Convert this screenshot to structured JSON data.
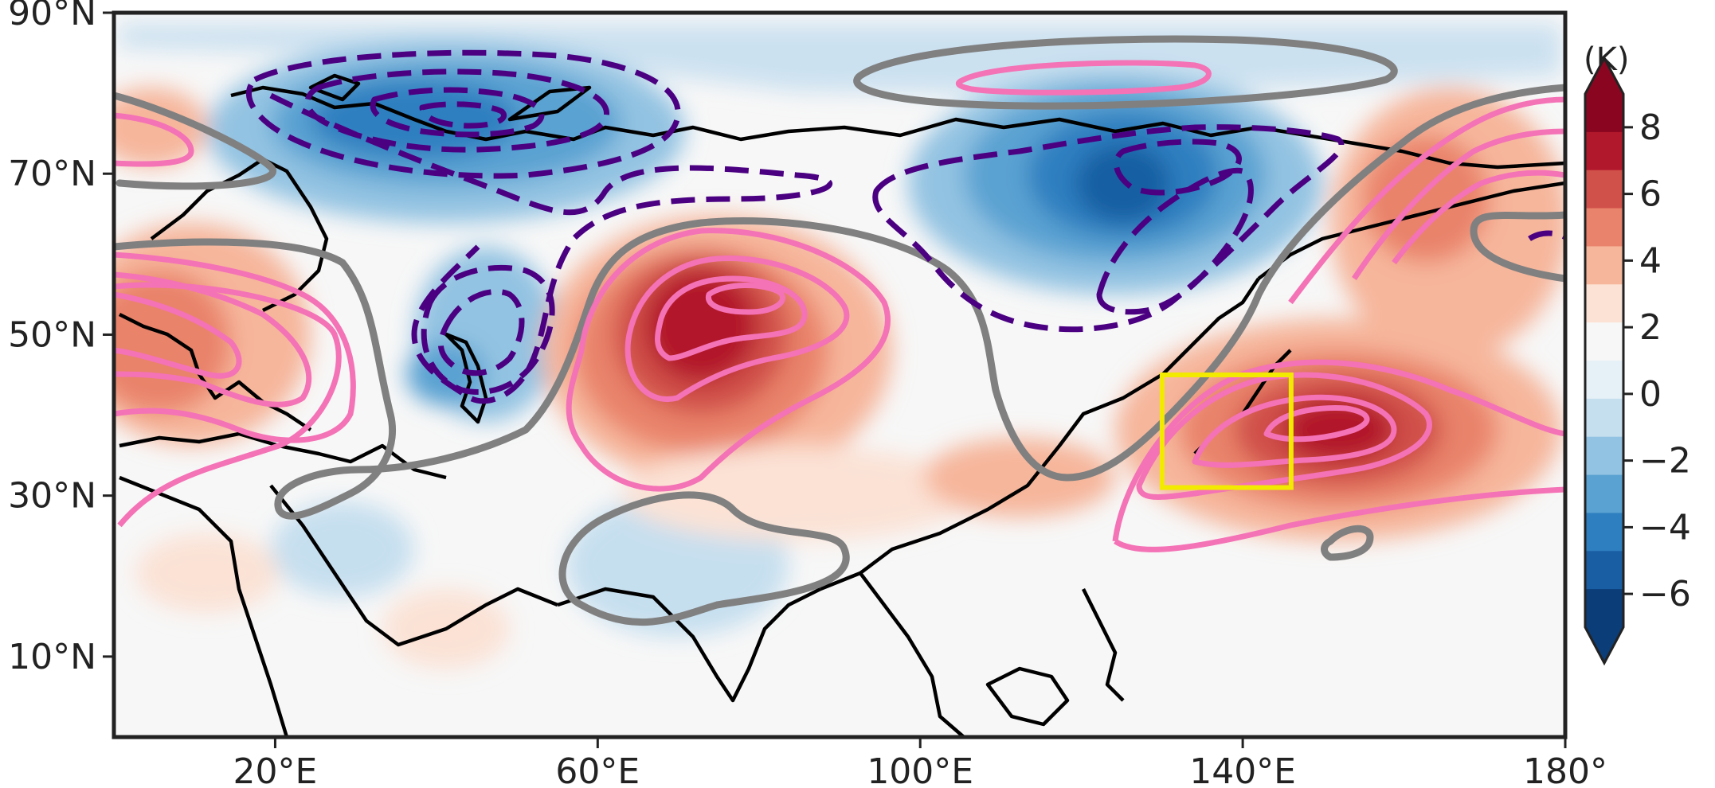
{
  "map": {
    "lon_range": [
      0,
      180
    ],
    "lat_range": [
      0,
      90
    ],
    "x_ticks": [
      {
        "lon": 20,
        "label": "20°E"
      },
      {
        "lon": 60,
        "label": "60°E"
      },
      {
        "lon": 100,
        "label": "100°E"
      },
      {
        "lon": 140,
        "label": "140°E"
      },
      {
        "lon": 180,
        "label": "180°"
      }
    ],
    "y_ticks": [
      {
        "lat": 90,
        "label": "90°N"
      },
      {
        "lat": 70,
        "label": "70°N"
      },
      {
        "lat": 50,
        "label": "50°N"
      },
      {
        "lat": 30,
        "label": "30°N"
      },
      {
        "lat": 10,
        "label": "10°N"
      }
    ],
    "highlight_box": {
      "lon": [
        130,
        146
      ],
      "lat": [
        31,
        45
      ],
      "color": "#f2ea00"
    },
    "contour_colors": {
      "positive": "#f472b6",
      "negative": "#4b0082",
      "zero": "#808080",
      "coastline": "#000000"
    }
  },
  "colorbar": {
    "unit": "(K)",
    "ticks": [
      {
        "value": 8,
        "label": "8"
      },
      {
        "value": 6,
        "label": "6"
      },
      {
        "value": 4,
        "label": "4"
      },
      {
        "value": 2,
        "label": "2"
      },
      {
        "value": 0,
        "label": "0"
      },
      {
        "value": -2,
        "label": "−2"
      },
      {
        "value": -4,
        "label": "−4"
      },
      {
        "value": -6,
        "label": "−6"
      }
    ],
    "colors": [
      "#0b3d78",
      "#195ea2",
      "#2e7fc0",
      "#5aa2d2",
      "#93c3e2",
      "#c6dfef",
      "#e6f0f7",
      "#f7f7f7",
      "#fbe2d5",
      "#f6b69b",
      "#e9836b",
      "#d0504a",
      "#b2182b",
      "#8a0620"
    ]
  }
}
